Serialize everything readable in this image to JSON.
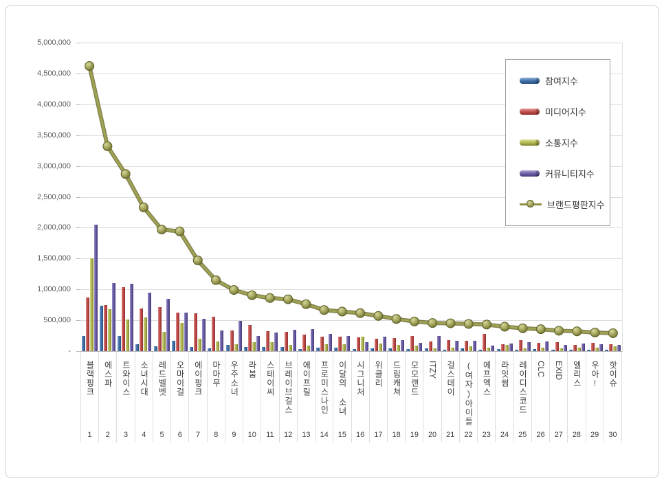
{
  "chart_data": {
    "type": "bar",
    "subtype": "grouped-bars-with-line-overlay",
    "title": "",
    "categories": [
      "블랙핑크",
      "에스파",
      "트와이스",
      "소녀시대",
      "레드벨벳",
      "오마이걸",
      "에이핑크",
      "마마무",
      "우주소녀",
      "라붐",
      "스테이씨",
      "브레이브걸스",
      "에이프릴",
      "프로미스나인",
      "이달의 소녀",
      "시그니처",
      "위클리",
      "드림캐쳐",
      "모모랜드",
      "ITZY",
      "걸스데이",
      "(여자)아이들",
      "에프엑스",
      "라잇썸",
      "레이디스코드",
      "CLC",
      "EXID",
      "엘리스",
      "우아!",
      "핫이슈"
    ],
    "ranks": [
      1,
      2,
      3,
      4,
      5,
      6,
      7,
      8,
      9,
      10,
      11,
      12,
      13,
      14,
      15,
      16,
      17,
      18,
      19,
      20,
      21,
      22,
      23,
      24,
      25,
      26,
      27,
      28,
      29,
      30
    ],
    "series": [
      {
        "name": "참여지수",
        "type": "bar",
        "color": "#3f6fa8",
        "values": [
          250000,
          740000,
          250000,
          110000,
          80000,
          170000,
          70000,
          50000,
          100000,
          70000,
          70000,
          70000,
          30000,
          60000,
          60000,
          30000,
          40000,
          40000,
          30000,
          40000,
          20000,
          40000,
          20000,
          30000,
          20000,
          30000,
          20000,
          20000,
          25000,
          20000
        ]
      },
      {
        "name": "미디어지수",
        "type": "bar",
        "color": "#bf4b48",
        "values": [
          870000,
          750000,
          1040000,
          690000,
          710000,
          625000,
          615000,
          560000,
          335000,
          420000,
          320000,
          310000,
          270000,
          235000,
          235000,
          220000,
          200000,
          215000,
          250000,
          160000,
          180000,
          170000,
          280000,
          110000,
          180000,
          130000,
          150000,
          105000,
          130000,
          110000
        ]
      },
      {
        "name": "소통지수",
        "type": "bar",
        "color": "#b0b64e",
        "values": [
          1500000,
          680000,
          510000,
          550000,
          310000,
          460000,
          200000,
          160000,
          110000,
          150000,
          150000,
          100000,
          90000,
          110000,
          115000,
          230000,
          120000,
          100000,
          85000,
          40000,
          60000,
          80000,
          60000,
          100000,
          50000,
          60000,
          50000,
          55000,
          60000,
          75000
        ]
      },
      {
        "name": "커뮤니티지수",
        "type": "bar",
        "color": "#6a5ba5",
        "values": [
          2050000,
          1100000,
          1090000,
          950000,
          850000,
          625000,
          525000,
          330000,
          495000,
          250000,
          300000,
          340000,
          355000,
          280000,
          250000,
          150000,
          230000,
          180000,
          130000,
          240000,
          165000,
          170000,
          90000,
          125000,
          140000,
          160000,
          105000,
          125000,
          110000,
          95000
        ]
      },
      {
        "name": "브랜드평판지수",
        "type": "line",
        "color": "#8f9147",
        "values": [
          4620000,
          3320000,
          2870000,
          2330000,
          1970000,
          1940000,
          1470000,
          1150000,
          990000,
          905000,
          860000,
          840000,
          760000,
          665000,
          640000,
          615000,
          570000,
          520000,
          480000,
          455000,
          450000,
          440000,
          430000,
          395000,
          370000,
          355000,
          330000,
          320000,
          300000,
          290000
        ]
      }
    ],
    "y_axis": {
      "min": 0,
      "max": 5000000,
      "step": 500000,
      "labels_bottom_up": [
        "-",
        "500,000",
        "1,000,000",
        "1,500,000",
        "2,000,000",
        "2,500,000",
        "3,000,000",
        "3,500,000",
        "4,000,000",
        "4,500,000",
        "5,000,000"
      ]
    },
    "legend_position": "top-right",
    "grid": true
  }
}
